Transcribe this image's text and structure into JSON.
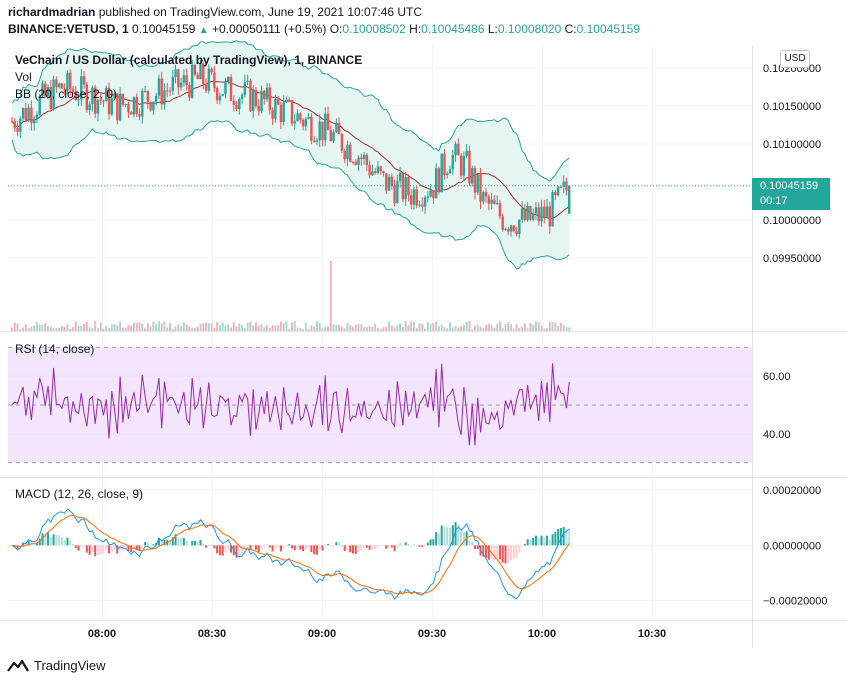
{
  "header": {
    "publisher_user": "richardmadrian",
    "publisher_text": "published on TradingView.com, June 19, 2021 10:07:46 UTC",
    "symbol": "BINANCE:VETUSD, 1",
    "last": "0.10045159",
    "change": "+0.00050111 (+0.5%)",
    "o_label": "O:",
    "o_value": "0.10008502",
    "h_label": "H:",
    "h_value": "0.10045486",
    "l_label": "L:",
    "l_value": "0.10008020",
    "c_label": "C:",
    "c_value": "0.10045159"
  },
  "legend": {
    "title": "VeChain / US Dollar (calculated by TradingView), 1, BINANCE",
    "vol": "Vol",
    "bb": "BB (20, close, 2, 0)",
    "rsi": "RSI (14, close)",
    "macd": "MACD (12, 26, close, 9)"
  },
  "currency_button": "USD",
  "price_label": {
    "price": "0.10045159",
    "countdown": "00:17"
  },
  "logo_text": "TradingView",
  "colors": {
    "up": "#26a69a",
    "down": "#ef5350",
    "bb_fill": "#e4f5f2",
    "rsi_line": "#9c27b0",
    "rsi_band": "#f3e5fc",
    "macd_line": "#2196f3",
    "signal_line": "#ff6d00"
  },
  "chart_data": [
    {
      "type": "candlestick",
      "name": "VeChain / US Dollar",
      "y_ticks": [
        "0.10200000",
        "0.10150000",
        "0.10100000",
        "0.10000000",
        "0.09950000"
      ],
      "ylim": [
        0.0992,
        0.1023
      ],
      "x_ticks": [
        "08:00",
        "08:30",
        "09:00",
        "09:30",
        "10:00",
        "10:30"
      ],
      "series_summary": {
        "open_region_high": 0.102,
        "low": 0.0997,
        "last_close": 0.10045159
      }
    },
    {
      "type": "line",
      "name": "RSI (14, close)",
      "y_ticks": [
        "60.00",
        "40.00"
      ],
      "ylim": [
        25,
        75
      ],
      "band": [
        30,
        70
      ]
    },
    {
      "type": "line",
      "name": "MACD (12, 26, close, 9)",
      "y_ticks": [
        "0.00020000",
        "0.00000000",
        "−0.00020000"
      ],
      "ylim": [
        -0.00027,
        0.00024
      ]
    }
  ]
}
